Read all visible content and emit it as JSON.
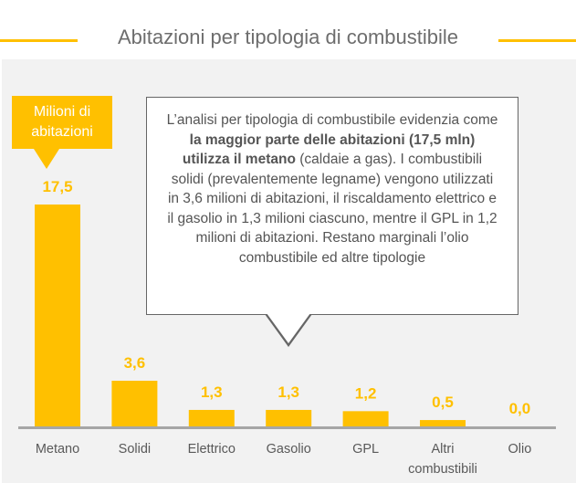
{
  "title": "Abitazioni per tipologia di combustibile",
  "unit_label": "Milioni di abitazioni",
  "callout": {
    "text_1": "L’analisi per tipologia di combustibile evidenzia come ",
    "text_bold": "la maggior parte delle abitazioni (17,5 mln) utilizza il metano",
    "text_2": " (caldaie a gas). I combustibili solidi (prevalentemente legname) vengono utilizzati in 3,6 milioni di abitazioni, il riscaldamento elettrico e il gasolio in 1,3 milioni ciascuno, mentre il GPL in 1,2 milioni di abitazioni. Restano marginali l’olio combustibile ed altre tipologie"
  },
  "colors": {
    "accent": "#FFC000",
    "panel": "#f2f2f2",
    "axis": "#a6a6a6",
    "text": "#595959"
  },
  "chart_data": {
    "type": "bar",
    "title": "Abitazioni per tipologia di combustibile",
    "ylabel": "Milioni di abitazioni",
    "categories": [
      "Metano",
      "Solidi",
      "Elettrico",
      "Gasolio",
      "GPL",
      "Altri combustibili",
      "Olio"
    ],
    "values": [
      17.5,
      3.6,
      1.3,
      1.3,
      1.2,
      0.5,
      0.0
    ],
    "value_labels": [
      "17,5",
      "3,6",
      "1,3",
      "1,3",
      "1,2",
      "0,5",
      "0,0"
    ],
    "ylim": [
      0,
      17.5
    ],
    "grid": false
  }
}
